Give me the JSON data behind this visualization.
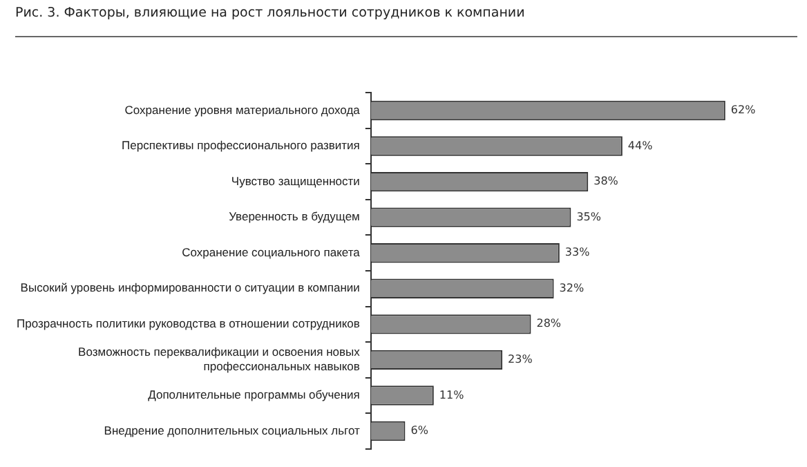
{
  "chart_data": {
    "type": "bar",
    "orientation": "horizontal",
    "title": "Рис. 3. Факторы, влияющие на рост лояльности сотрудников к компании",
    "categories": [
      "Сохранение уровня материального дохода",
      "Перспективы профессионального развития",
      "Чувство защищенности",
      "Уверенность в будущем",
      "Сохранение социального пакета",
      "Высокий уровень информированности о ситуации в компании",
      "Прозрачность политики руководства в отношении сотрудников",
      "Возможность переквалификации и освоения новых\nпрофессиональных навыков",
      "Дополнительные программы обучения",
      "Внедрение дополнительных социальных льгот"
    ],
    "values": [
      62,
      44,
      38,
      35,
      33,
      32,
      28,
      23,
      11,
      6
    ],
    "value_labels": [
      "62%",
      "44%",
      "38%",
      "35%",
      "33%",
      "32%",
      "28%",
      "23%",
      "11%",
      "6%"
    ],
    "color": "#8c8c8c"
  }
}
